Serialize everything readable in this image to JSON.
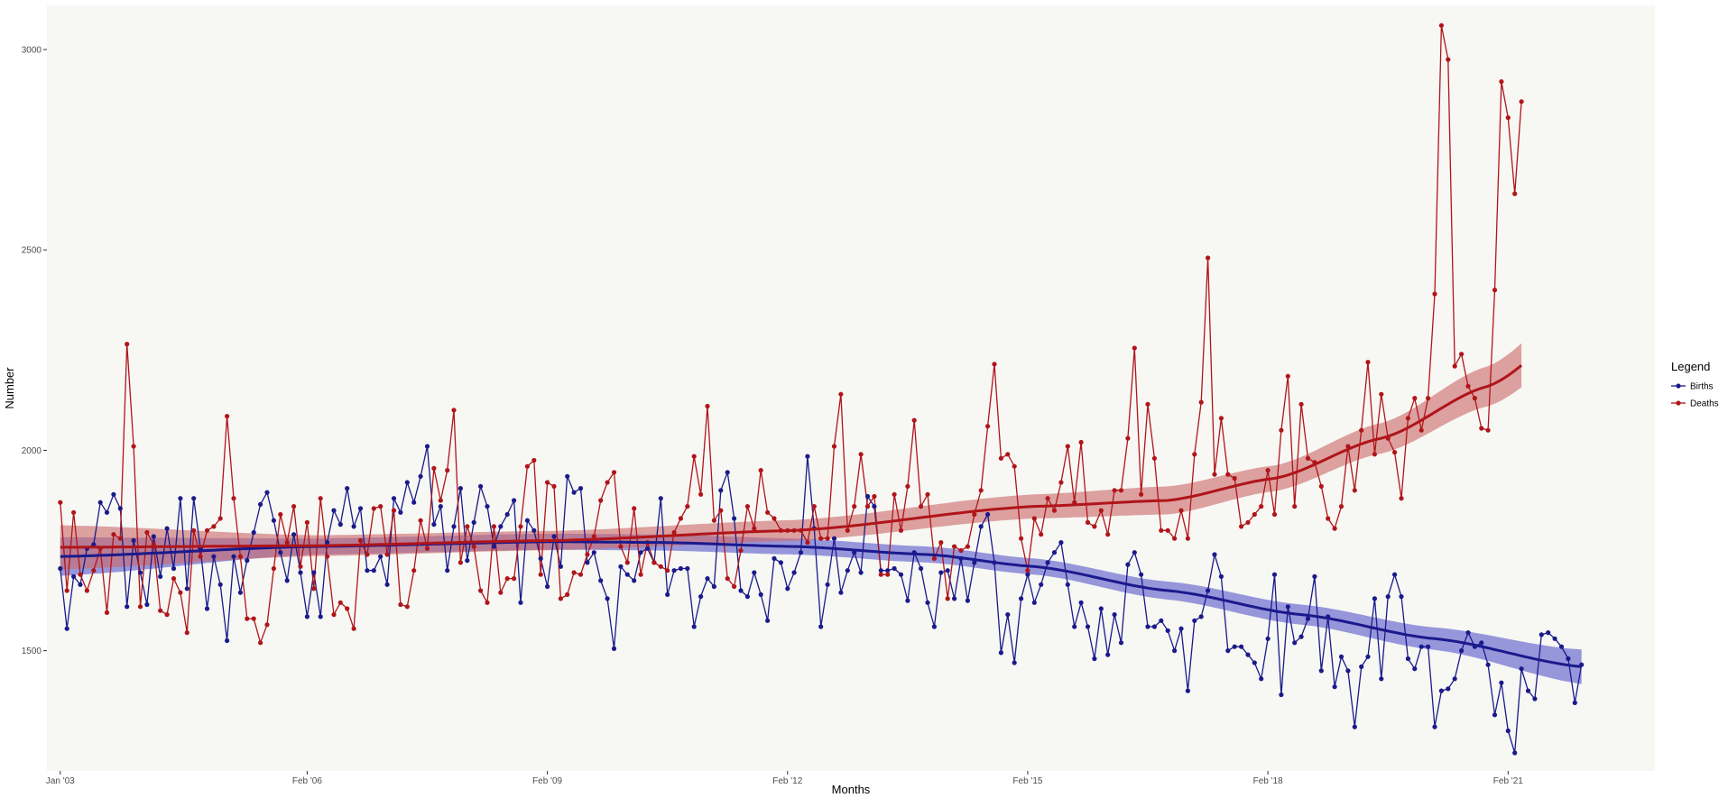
{
  "chart_data": {
    "type": "line",
    "xlabel": "Months",
    "ylabel": "Number",
    "x_start": "2003-01",
    "frequency": "monthly",
    "xlim": [
      "2002-11",
      "2022-12"
    ],
    "ylim": [
      1200,
      3110
    ],
    "x_ticks": [
      {
        "label": "Jan '03",
        "month": "2003-01"
      },
      {
        "label": "Feb '06",
        "month": "2006-02"
      },
      {
        "label": "Feb '09",
        "month": "2009-02"
      },
      {
        "label": "Feb '12",
        "month": "2012-02"
      },
      {
        "label": "Feb '15",
        "month": "2015-02"
      },
      {
        "label": "Feb '18",
        "month": "2018-02"
      },
      {
        "label": "Feb '21",
        "month": "2021-02"
      }
    ],
    "y_ticks": [
      1500,
      2000,
      2500,
      3000
    ],
    "grid": false,
    "background": "#f7f7f3",
    "legend": {
      "title": "Legend",
      "position": "right"
    },
    "series": [
      {
        "name": "Births",
        "color": "#1a1a8c",
        "band_color": "#5a5acc",
        "values": [
          1705,
          1555,
          1685,
          1665,
          1755,
          1765,
          1870,
          1845,
          1890,
          1855,
          1610,
          1775,
          1695,
          1615,
          1785,
          1685,
          1805,
          1705,
          1880,
          1655,
          1880,
          1755,
          1605,
          1735,
          1665,
          1525,
          1735,
          1645,
          1725,
          1795,
          1865,
          1895,
          1825,
          1745,
          1675,
          1790,
          1695,
          1585,
          1695,
          1585,
          1770,
          1850,
          1815,
          1905,
          1810,
          1855,
          1700,
          1700,
          1735,
          1665,
          1880,
          1845,
          1920,
          1870,
          1935,
          2010,
          1815,
          1860,
          1700,
          1810,
          1905,
          1725,
          1820,
          1910,
          1860,
          1760,
          1810,
          1840,
          1875,
          1620,
          1825,
          1800,
          1730,
          1660,
          1785,
          1710,
          1935,
          1895,
          1905,
          1720,
          1745,
          1675,
          1630,
          1505,
          1710,
          1690,
          1675,
          1745,
          1755,
          1720,
          1880,
          1640,
          1700,
          1705,
          1705,
          1560,
          1635,
          1680,
          1660,
          1900,
          1945,
          1830,
          1650,
          1635,
          1695,
          1640,
          1575,
          1730,
          1720,
          1655,
          1695,
          1745,
          1985,
          1805,
          1560,
          1665,
          1780,
          1645,
          1700,
          1745,
          1695,
          1885,
          1860,
          1700,
          1700,
          1705,
          1690,
          1625,
          1745,
          1705,
          1620,
          1560,
          1695,
          1700,
          1630,
          1730,
          1625,
          1720,
          1810,
          1840,
          1720,
          1495,
          1590,
          1470,
          1630,
          1690,
          1620,
          1665,
          1720,
          1745,
          1770,
          1665,
          1560,
          1620,
          1560,
          1480,
          1605,
          1490,
          1590,
          1520,
          1715,
          1745,
          1690,
          1560,
          1560,
          1575,
          1550,
          1500,
          1555,
          1400,
          1575,
          1585,
          1650,
          1740,
          1685,
          1500,
          1510,
          1510,
          1490,
          1470,
          1430,
          1530,
          1690,
          1390,
          1610,
          1520,
          1535,
          1580,
          1685,
          1450,
          1585,
          1410,
          1485,
          1450,
          1310,
          1460,
          1485,
          1630,
          1430,
          1635,
          1690,
          1635,
          1480,
          1455,
          1510,
          1510,
          1310,
          1400,
          1405,
          1430,
          1500,
          1545,
          1510,
          1520,
          1465,
          1340,
          1420,
          1300,
          1245,
          1455,
          1400,
          1380,
          1540,
          1545,
          1530,
          1510,
          1480,
          1370,
          1465
        ],
        "trend": [
          [
            0,
            1735
          ],
          [
            38,
            1760
          ],
          [
            74,
            1772
          ],
          [
            90,
            1770
          ],
          [
            110,
            1760
          ],
          [
            130,
            1740
          ],
          [
            146,
            1710
          ],
          [
            166,
            1650
          ],
          [
            186,
            1590
          ],
          [
            206,
            1530
          ],
          [
            228,
            1460
          ],
          [
            237,
            1410
          ]
        ],
        "band_halfwidth": [
          [
            0,
            48
          ],
          [
            38,
            20
          ],
          [
            74,
            20
          ],
          [
            110,
            20
          ],
          [
            146,
            20
          ],
          [
            186,
            25
          ],
          [
            206,
            28
          ],
          [
            237,
            48
          ]
        ]
      },
      {
        "name": "Deaths",
        "color": "#b0151a",
        "band_color": "#cc6a6a",
        "values": [
          1870,
          1650,
          1845,
          1690,
          1650,
          1700,
          1755,
          1595,
          1790,
          1780,
          2265,
          2010,
          1610,
          1795,
          1765,
          1600,
          1590,
          1680,
          1645,
          1545,
          1800,
          1735,
          1800,
          1810,
          1830,
          2085,
          1880,
          1735,
          1580,
          1580,
          1520,
          1565,
          1705,
          1840,
          1770,
          1860,
          1710,
          1820,
          1655,
          1880,
          1735,
          1590,
          1620,
          1605,
          1555,
          1775,
          1740,
          1855,
          1860,
          1740,
          1850,
          1615,
          1610,
          1700,
          1825,
          1755,
          1955,
          1875,
          1950,
          2100,
          1720,
          1810,
          1760,
          1650,
          1620,
          1810,
          1645,
          1680,
          1680,
          1810,
          1960,
          1975,
          1690,
          1920,
          1910,
          1630,
          1640,
          1695,
          1690,
          1740,
          1785,
          1875,
          1920,
          1945,
          1760,
          1720,
          1855,
          1690,
          1770,
          1720,
          1710,
          1700,
          1795,
          1830,
          1860,
          1985,
          1890,
          2110,
          1825,
          1850,
          1680,
          1660,
          1750,
          1860,
          1805,
          1950,
          1845,
          1830,
          1800,
          1800,
          1800,
          1800,
          1770,
          1860,
          1780,
          1780,
          2010,
          2140,
          1800,
          1860,
          1990,
          1860,
          1885,
          1690,
          1690,
          1890,
          1800,
          1910,
          2075,
          1860,
          1890,
          1730,
          1770,
          1630,
          1760,
          1750,
          1760,
          1840,
          1900,
          2060,
          2215,
          1980,
          1990,
          1960,
          1780,
          1700,
          1830,
          1790,
          1880,
          1850,
          1920,
          2010,
          1870,
          2020,
          1820,
          1810,
          1850,
          1790,
          1900,
          1900,
          2030,
          2255,
          1890,
          2115,
          1980,
          1800,
          1800,
          1780,
          1850,
          1780,
          1990,
          2120,
          2480,
          1940,
          2080,
          1940,
          1930,
          1810,
          1820,
          1840,
          1860,
          1950,
          1840,
          2050,
          2185,
          1860,
          2115,
          1980,
          1970,
          1910,
          1830,
          1805,
          1860,
          2010,
          1900,
          2050,
          2220,
          1990,
          2140,
          2030,
          1995,
          1880,
          2080,
          2130,
          2050,
          2130,
          2390,
          3060,
          2975,
          2210,
          2240,
          2160,
          2130,
          2055,
          2050,
          2400,
          2920,
          2830,
          2640,
          2870
        ],
        "trend": [
          [
            0,
            1758
          ],
          [
            38,
            1762
          ],
          [
            74,
            1775
          ],
          [
            110,
            1800
          ],
          [
            146,
            1860
          ],
          [
            166,
            1875
          ],
          [
            182,
            1930
          ],
          [
            198,
            2030
          ],
          [
            214,
            2160
          ],
          [
            228,
            2320
          ],
          [
            237,
            2420
          ]
        ],
        "band_halfwidth": [
          [
            0,
            55
          ],
          [
            38,
            26
          ],
          [
            74,
            24
          ],
          [
            110,
            26
          ],
          [
            146,
            30
          ],
          [
            166,
            35
          ],
          [
            182,
            32
          ],
          [
            198,
            38
          ],
          [
            214,
            50
          ],
          [
            228,
            65
          ],
          [
            237,
            80
          ]
        ]
      }
    ]
  }
}
